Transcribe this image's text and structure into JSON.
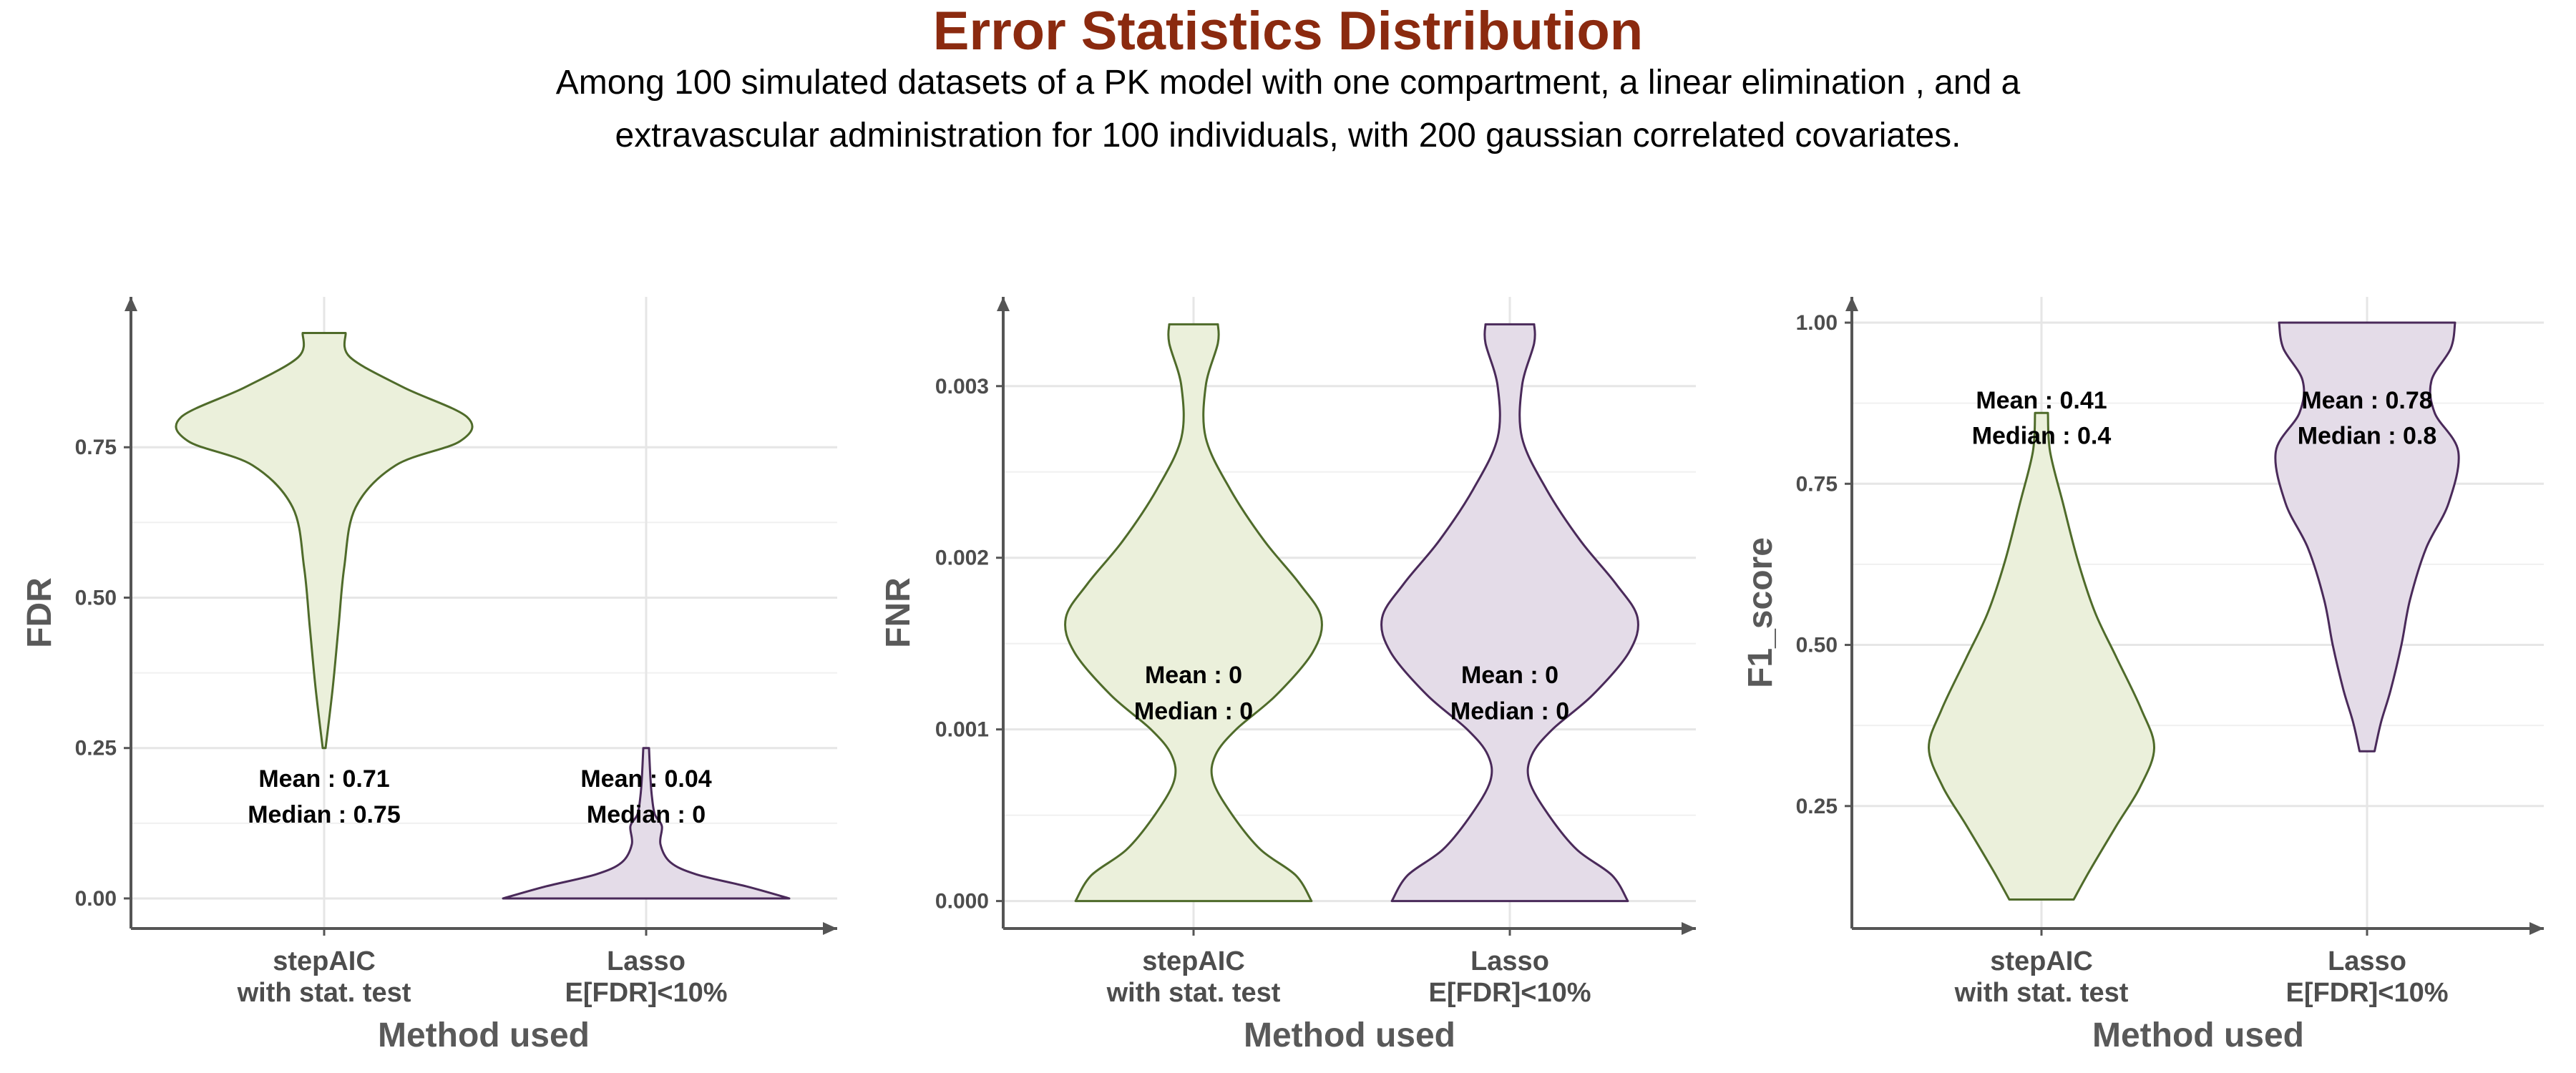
{
  "title": "Error Statistics Distribution",
  "subtitle_lines": [
    "Among 100 simulated datasets of a PK model with one compartment, a linear elimination , and a",
    "extravascular administration for 100 individuals, with 200 gaussian correlated covariates."
  ],
  "colors": {
    "title": "#8b2a0f",
    "stepaic_fill": "#ebf0db",
    "stepaic_line": "#4f6b2a",
    "lasso_fill": "#e4dce8",
    "lasso_line": "#4a2a5a",
    "axis": "#555555",
    "grid": "#e6e6e6"
  },
  "chart_data": [
    {
      "type": "violin",
      "ylabel": "FDR",
      "xlabel": "Method used",
      "categories": [
        "stepAIC\nwith stat. test",
        "Lasso\nE[FDR]<10%"
      ],
      "ylim": [
        -0.05,
        1.0
      ],
      "yticks": [
        0.0,
        0.25,
        0.5,
        0.75
      ],
      "ytick_labels": [
        "0.00",
        "0.25",
        "0.50",
        "0.75"
      ],
      "grid": true,
      "series": [
        {
          "category": "stepAIC\nwith stat. test",
          "profile": [
            [
              0.25,
              0.01
            ],
            [
              0.35,
              0.06
            ],
            [
              0.45,
              0.1
            ],
            [
              0.55,
              0.14
            ],
            [
              0.65,
              0.22
            ],
            [
              0.72,
              0.5
            ],
            [
              0.76,
              0.95
            ],
            [
              0.8,
              1.0
            ],
            [
              0.85,
              0.55
            ],
            [
              0.9,
              0.18
            ],
            [
              0.94,
              0.15
            ]
          ],
          "annotations": [
            "Mean : 0.71",
            "Median : 0.75"
          ],
          "annotation_y": [
            0.2,
            0.14
          ]
        },
        {
          "category": "Lasso\nE[FDR]<10%",
          "profile": [
            [
              0.0,
              1.0
            ],
            [
              0.02,
              0.7
            ],
            [
              0.04,
              0.35
            ],
            [
              0.06,
              0.17
            ],
            [
              0.09,
              0.1
            ],
            [
              0.12,
              0.11
            ],
            [
              0.14,
              0.06
            ],
            [
              0.17,
              0.04
            ],
            [
              0.2,
              0.03
            ],
            [
              0.25,
              0.02
            ]
          ],
          "annotations": [
            "Mean : 0.04",
            "Median : 0"
          ],
          "annotation_y": [
            0.2,
            0.14
          ]
        }
      ]
    },
    {
      "type": "violin",
      "ylabel": "FNR",
      "xlabel": "Method used",
      "categories": [
        "stepAIC\nwith stat. test",
        "Lasso\nE[FDR]<10%"
      ],
      "ylim": [
        -0.00016,
        0.00352
      ],
      "yticks": [
        0.0,
        0.001,
        0.002,
        0.003
      ],
      "ytick_labels": [
        "0.000",
        "0.001",
        "0.002",
        "0.003"
      ],
      "grid": true,
      "series": [
        {
          "category": "stepAIC\nwith stat. test",
          "profile": [
            [
              0.0,
              0.97
            ],
            [
              0.00015,
              0.84
            ],
            [
              0.0003,
              0.55
            ],
            [
              0.0005,
              0.32
            ],
            [
              0.0007,
              0.16
            ],
            [
              0.00085,
              0.18
            ],
            [
              0.001,
              0.35
            ],
            [
              0.0012,
              0.68
            ],
            [
              0.00145,
              0.98
            ],
            [
              0.00165,
              1.05
            ],
            [
              0.00185,
              0.87
            ],
            [
              0.0021,
              0.58
            ],
            [
              0.0024,
              0.3
            ],
            [
              0.0027,
              0.1
            ],
            [
              0.003,
              0.1
            ],
            [
              0.00325,
              0.2
            ],
            [
              0.00336,
              0.2
            ]
          ],
          "annotations": [
            "Mean : 0",
            "Median : 0"
          ],
          "annotation_y": [
            0.00132,
            0.00111
          ]
        },
        {
          "category": "Lasso\nE[FDR]<10%",
          "profile": [
            [
              0.0,
              0.97
            ],
            [
              0.00015,
              0.84
            ],
            [
              0.0003,
              0.55
            ],
            [
              0.0005,
              0.32
            ],
            [
              0.0007,
              0.16
            ],
            [
              0.00085,
              0.18
            ],
            [
              0.001,
              0.35
            ],
            [
              0.0012,
              0.68
            ],
            [
              0.00145,
              0.98
            ],
            [
              0.00165,
              1.05
            ],
            [
              0.00185,
              0.87
            ],
            [
              0.0021,
              0.58
            ],
            [
              0.0024,
              0.3
            ],
            [
              0.0027,
              0.1
            ],
            [
              0.003,
              0.1
            ],
            [
              0.00325,
              0.2
            ],
            [
              0.00336,
              0.2
            ]
          ],
          "annotations": [
            "Mean : 0",
            "Median : 0"
          ],
          "annotation_y": [
            0.00132,
            0.00111
          ]
        }
      ]
    },
    {
      "type": "violin",
      "ylabel": "F1_score",
      "xlabel": "Method used",
      "categories": [
        "stepAIC\nwith stat. test",
        "Lasso\nE[FDR]<10%"
      ],
      "ylim": [
        0.06,
        1.04
      ],
      "yticks": [
        0.25,
        0.5,
        0.75,
        1.0
      ],
      "ytick_labels": [
        "0.25",
        "0.50",
        "0.75",
        "1.00"
      ],
      "grid": true,
      "series": [
        {
          "category": "stepAIC\nwith stat. test",
          "profile": [
            [
              0.105,
              0.3
            ],
            [
              0.15,
              0.45
            ],
            [
              0.22,
              0.7
            ],
            [
              0.28,
              0.92
            ],
            [
              0.34,
              1.05
            ],
            [
              0.4,
              0.93
            ],
            [
              0.48,
              0.7
            ],
            [
              0.55,
              0.5
            ],
            [
              0.63,
              0.34
            ],
            [
              0.72,
              0.2
            ],
            [
              0.8,
              0.08
            ],
            [
              0.86,
              0.06
            ]
          ],
          "annotations": [
            "Mean : 0.41",
            "Median : 0.4"
          ],
          "annotation_y": [
            0.88,
            0.825
          ]
        },
        {
          "category": "Lasso\nE[FDR]<10%",
          "profile": [
            [
              0.335,
              0.07
            ],
            [
              0.38,
              0.13
            ],
            [
              0.43,
              0.22
            ],
            [
              0.5,
              0.32
            ],
            [
              0.57,
              0.4
            ],
            [
              0.65,
              0.55
            ],
            [
              0.72,
              0.76
            ],
            [
              0.8,
              0.85
            ],
            [
              0.86,
              0.63
            ],
            [
              0.91,
              0.6
            ],
            [
              0.96,
              0.78
            ],
            [
              1.0,
              0.82
            ]
          ],
          "annotations": [
            "Mean : 0.78",
            "Median : 0.8"
          ],
          "annotation_y": [
            0.88,
            0.825
          ]
        }
      ]
    }
  ]
}
